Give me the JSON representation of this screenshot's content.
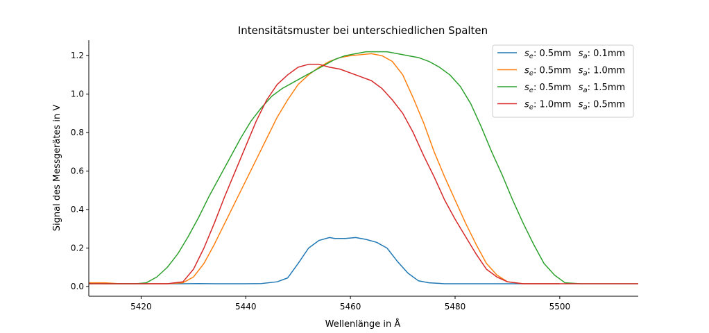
{
  "chart_data": {
    "type": "line",
    "title": "Intensitätsmuster bei unterschiedlichen Spalten",
    "xlabel": "Wellenlänge in Å",
    "ylabel": "Signal des Messgerätes in V",
    "xlim": [
      5410,
      5515
    ],
    "ylim": [
      -0.05,
      1.28
    ],
    "xticks": [
      5420,
      5440,
      5460,
      5480,
      5500
    ],
    "yticks": [
      0.0,
      0.2,
      0.4,
      0.6,
      0.8,
      1.0,
      1.2
    ],
    "xtick_labels": [
      "5420",
      "5440",
      "5460",
      "5480",
      "5500"
    ],
    "ytick_labels": [
      "0.0",
      "0.2",
      "0.4",
      "0.6",
      "0.8",
      "1.0",
      "1.2"
    ],
    "grid": false,
    "legend_position": "top-right",
    "series": [
      {
        "name": "s_e: 0.5mm  s_a: 0.1mm",
        "legend": {
          "a_sub": "e",
          "a_val": ": 0.5mm",
          "b_sub": "a",
          "b_val": ": 0.1mm"
        },
        "color": "#1f77b4",
        "x": [
          5410,
          5413,
          5416,
          5419,
          5422,
          5425,
          5428,
          5431,
          5434,
          5437,
          5440,
          5443,
          5446,
          5448,
          5450,
          5452,
          5454,
          5456,
          5457,
          5459,
          5461,
          5463,
          5465,
          5467,
          5469,
          5471,
          5473,
          5475,
          5478,
          5481,
          5484,
          5487,
          5490,
          5493,
          5496,
          5500
        ],
        "y": [
          0.02,
          0.015,
          0.015,
          0.015,
          0.015,
          0.015,
          0.015,
          0.016,
          0.015,
          0.015,
          0.015,
          0.016,
          0.025,
          0.045,
          0.12,
          0.2,
          0.24,
          0.255,
          0.25,
          0.25,
          0.255,
          0.245,
          0.23,
          0.2,
          0.13,
          0.07,
          0.03,
          0.02,
          0.015,
          0.015,
          0.015,
          0.015,
          0.015,
          0.015,
          0.015,
          0.015
        ]
      },
      {
        "name": "s_e: 0.5mm  s_a: 1.0mm",
        "legend": {
          "a_sub": "e",
          "a_val": ": 0.5mm",
          "b_sub": "a",
          "b_val": ": 1.0mm"
        },
        "color": "#ff7f0e",
        "x": [
          5410,
          5413,
          5416,
          5419,
          5422,
          5425,
          5428,
          5430,
          5432,
          5434,
          5436,
          5438,
          5440,
          5442,
          5444,
          5446,
          5448,
          5450,
          5452,
          5454,
          5456,
          5458,
          5460,
          5462,
          5464,
          5466,
          5468,
          5470,
          5472,
          5474,
          5476,
          5478,
          5480,
          5482,
          5484,
          5486,
          5488,
          5490,
          5493,
          5496,
          5500
        ],
        "y": [
          0.02,
          0.02,
          0.015,
          0.015,
          0.015,
          0.015,
          0.02,
          0.05,
          0.12,
          0.22,
          0.33,
          0.44,
          0.55,
          0.66,
          0.77,
          0.88,
          0.97,
          1.05,
          1.1,
          1.14,
          1.17,
          1.19,
          1.2,
          1.205,
          1.21,
          1.2,
          1.17,
          1.1,
          0.98,
          0.85,
          0.7,
          0.57,
          0.45,
          0.33,
          0.22,
          0.12,
          0.06,
          0.025,
          0.015,
          0.015,
          0.015
        ]
      },
      {
        "name": "s_e: 0.5mm  s_a: 1.5mm",
        "legend": {
          "a_sub": "e",
          "a_val": ": 0.5mm",
          "b_sub": "a",
          "b_val": ": 1.5mm"
        },
        "color": "#2ca02c",
        "x": [
          5410,
          5413,
          5416,
          5419,
          5421,
          5423,
          5425,
          5427,
          5429,
          5431,
          5433,
          5435,
          5437,
          5439,
          5441,
          5443,
          5445,
          5447,
          5449,
          5451,
          5453,
          5455,
          5457,
          5459,
          5461,
          5463,
          5465,
          5467,
          5469,
          5471,
          5473,
          5475,
          5477,
          5479,
          5481,
          5483,
          5485,
          5487,
          5489,
          5491,
          5493,
          5495,
          5497,
          5499,
          5501,
          5504,
          5508,
          5512,
          5515
        ],
        "y": [
          0.015,
          0.015,
          0.015,
          0.015,
          0.02,
          0.05,
          0.1,
          0.17,
          0.26,
          0.36,
          0.47,
          0.57,
          0.67,
          0.77,
          0.86,
          0.93,
          0.99,
          1.03,
          1.06,
          1.09,
          1.12,
          1.15,
          1.18,
          1.2,
          1.21,
          1.22,
          1.22,
          1.22,
          1.21,
          1.2,
          1.19,
          1.17,
          1.14,
          1.1,
          1.04,
          0.95,
          0.83,
          0.7,
          0.58,
          0.45,
          0.33,
          0.22,
          0.12,
          0.06,
          0.02,
          0.015,
          0.015,
          0.015,
          0.015
        ]
      },
      {
        "name": "s_e: 1.0mm  s_a: 0.5mm",
        "legend": {
          "a_sub": "e",
          "a_val": ": 1.0mm",
          "b_sub": "a",
          "b_val": ": 0.5mm"
        },
        "color": "#d62728",
        "x": [
          5410,
          5413,
          5416,
          5419,
          5422,
          5425,
          5428,
          5430,
          5432,
          5434,
          5436,
          5438,
          5440,
          5442,
          5444,
          5446,
          5448,
          5450,
          5452,
          5454,
          5456,
          5458,
          5460,
          5462,
          5464,
          5466,
          5468,
          5470,
          5472,
          5474,
          5476,
          5478,
          5480,
          5482,
          5484,
          5486,
          5488,
          5490,
          5493,
          5496,
          5500,
          5504,
          5508,
          5512,
          5515
        ],
        "y": [
          0.015,
          0.015,
          0.015,
          0.015,
          0.015,
          0.015,
          0.025,
          0.09,
          0.2,
          0.33,
          0.47,
          0.6,
          0.73,
          0.86,
          0.97,
          1.05,
          1.1,
          1.14,
          1.155,
          1.155,
          1.14,
          1.13,
          1.11,
          1.09,
          1.07,
          1.03,
          0.97,
          0.9,
          0.8,
          0.68,
          0.57,
          0.45,
          0.35,
          0.26,
          0.17,
          0.09,
          0.05,
          0.025,
          0.015,
          0.015,
          0.015,
          0.015,
          0.015,
          0.015,
          0.015
        ]
      }
    ]
  }
}
